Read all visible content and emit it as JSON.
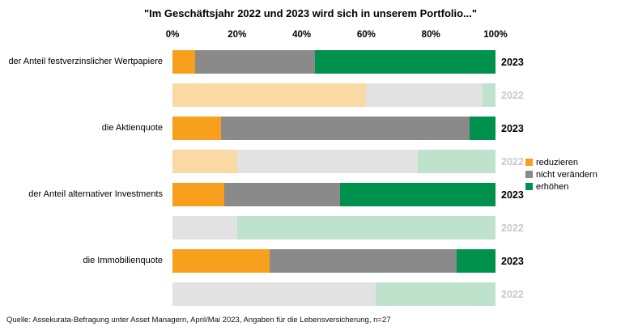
{
  "chart_data": {
    "type": "bar",
    "variant": "horizontal-stacked",
    "title": "\"Im Geschäftsjahr 2022 und 2023 wird sich in unserem Portfolio...\"",
    "x_ticks": [
      "0%",
      "20%",
      "40%",
      "60%",
      "80%",
      "100%"
    ],
    "xlim": [
      0,
      100
    ],
    "unit": "%",
    "grid": false,
    "legend_position": "right",
    "series_keys": [
      "reduzieren",
      "nicht verändern",
      "erhöhen"
    ],
    "legend": [
      {
        "label": "reduzieren",
        "color": "#F8A01D"
      },
      {
        "label": "nicht verändern",
        "color": "#8A8A8A"
      },
      {
        "label": "erhöhen",
        "color": "#00914D"
      }
    ],
    "colors_2023": [
      "#F8A01D",
      "#8A8A8A",
      "#00914D"
    ],
    "colors_2022": [
      "#FBD9A4",
      "#E2E2E2",
      "#BFE2CC"
    ],
    "year_label_colors": {
      "2023": "#000000",
      "2022": "#C9C9C9"
    },
    "groups": [
      {
        "category": "der Anteil festverzinslicher Wertpapiere",
        "bars": [
          {
            "year": "2023",
            "values": [
              7,
              37,
              56
            ]
          },
          {
            "year": "2022",
            "values": [
              60,
              36,
              4
            ]
          }
        ]
      },
      {
        "category": "die Aktienquote",
        "bars": [
          {
            "year": "2023",
            "values": [
              15,
              77,
              8
            ]
          },
          {
            "year": "2022",
            "values": [
              20,
              56,
              24
            ]
          }
        ]
      },
      {
        "category": "der Anteil alternativer Investments",
        "bars": [
          {
            "year": "2023",
            "values": [
              16,
              36,
              48
            ]
          },
          {
            "year": "2022",
            "values": [
              0,
              20,
              80
            ]
          }
        ]
      },
      {
        "category": "die Immobilienquote",
        "bars": [
          {
            "year": "2023",
            "values": [
              30,
              58,
              12
            ]
          },
          {
            "year": "2022",
            "values": [
              0,
              63,
              37
            ]
          }
        ]
      }
    ],
    "source": "Quelle: Assekurata-Befragung unter Asset Managern, April/Mai 2023, Angaben für die Lebensversicherung, n=27"
  }
}
